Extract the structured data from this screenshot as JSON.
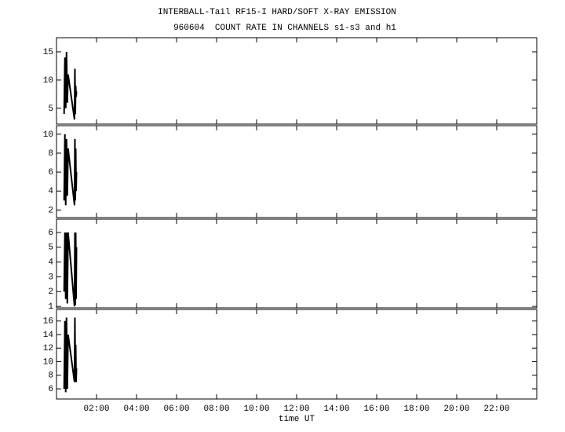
{
  "chart_data": [
    {
      "type": "line",
      "title": "INTERBALL-Tail RF15-I HARD/SOFT X-RAY EMISSION",
      "subtitle": "960604  COUNT RATE IN CHANNELS s1-s3 and h1",
      "x": [
        0.38,
        0.42,
        0.46,
        0.5,
        0.54,
        0.58,
        0.9,
        0.92,
        0.94,
        0.96,
        0.98,
        1.0
      ],
      "values": [
        4,
        14,
        5,
        15,
        6,
        11,
        3,
        12,
        4,
        9,
        7,
        8
      ],
      "color": "#000000",
      "xlim": [
        0,
        24
      ],
      "ylim": [
        2.2,
        17.5
      ],
      "yticks": [
        5,
        10,
        15
      ]
    },
    {
      "type": "line",
      "x": [
        0.38,
        0.42,
        0.46,
        0.5,
        0.54,
        0.58,
        0.9,
        0.92,
        0.94,
        0.96,
        0.98,
        1.0
      ],
      "values": [
        3,
        10,
        2.5,
        9.5,
        3.5,
        8.5,
        2.5,
        9.5,
        3,
        8.5,
        4,
        6
      ],
      "color": "#000000",
      "xlim": [
        0,
        24
      ],
      "ylim": [
        1.2,
        10.9
      ],
      "yticks": [
        2,
        4,
        6,
        8,
        10
      ]
    },
    {
      "type": "line",
      "x": [
        0.38,
        0.42,
        0.46,
        0.5,
        0.54,
        0.58,
        0.9,
        0.92,
        0.94,
        0.96,
        0.98,
        1.0
      ],
      "values": [
        2,
        6,
        1.5,
        6,
        1.2,
        6,
        1,
        6,
        1.1,
        6,
        1.5,
        5
      ],
      "color": "#000000",
      "xlim": [
        0,
        24
      ],
      "ylim": [
        0.9,
        6.9
      ],
      "yticks": [
        1,
        2,
        3,
        4,
        5,
        6
      ]
    },
    {
      "type": "line",
      "xlabel": "time UT",
      "x": [
        0.38,
        0.42,
        0.46,
        0.5,
        0.54,
        0.58,
        0.9,
        0.92,
        0.94,
        0.96,
        0.98,
        1.0
      ],
      "values": [
        6,
        16,
        5.5,
        16.5,
        6,
        14,
        7,
        16.5,
        8,
        12.5,
        7,
        9
      ],
      "color": "#000000",
      "xlim": [
        0,
        24
      ],
      "ylim": [
        4.5,
        17.7
      ],
      "yticks": [
        6,
        8,
        10,
        12,
        14,
        16
      ],
      "xticks": [
        {
          "value": 2,
          "label": "02:00"
        },
        {
          "value": 4,
          "label": "04:00"
        },
        {
          "value": 6,
          "label": "06:00"
        },
        {
          "value": 8,
          "label": "08:00"
        },
        {
          "value": 10,
          "label": "10:00"
        },
        {
          "value": 12,
          "label": "12:00"
        },
        {
          "value": 14,
          "label": "14:00"
        },
        {
          "value": 16,
          "label": "16:00"
        },
        {
          "value": 18,
          "label": "18:00"
        },
        {
          "value": 20,
          "label": "20:00"
        },
        {
          "value": 22,
          "label": "22:00"
        }
      ]
    }
  ]
}
